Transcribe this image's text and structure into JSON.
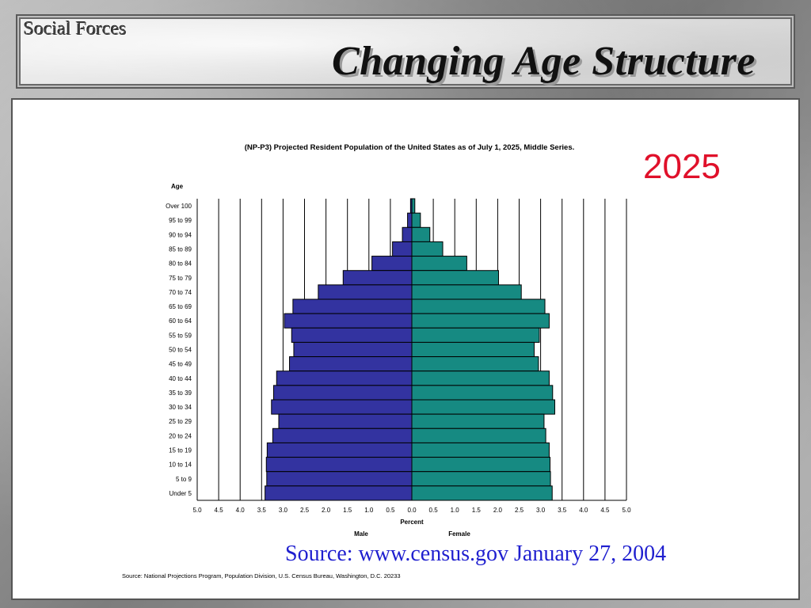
{
  "slide": {
    "section_label": "Social Forces",
    "title": "Changing Age Structure",
    "year_label": "2025",
    "source_link": "Source: www.census.gov  January 27, 2004",
    "source_note": "Source:  National Projections Program, Population Division, U.S. Census Bureau, Washington, D.C. 20233"
  },
  "colors": {
    "male": "#3333a0",
    "female": "#168a82",
    "year_label": "#e0102a",
    "source_link": "#1f1fcf"
  },
  "chart_data": {
    "type": "bar",
    "orientation": "horizontal-population-pyramid",
    "title": "(NP-P3)  Projected Resident Population of the United States as of July 1, 2025, Middle Series.",
    "ylabel": "Age",
    "xlabel": "Percent",
    "male_label": "Male",
    "female_label": "Female",
    "categories": [
      "Over 100",
      "95 to 99",
      "90 to 94",
      "85 to 89",
      "80 to 84",
      "75 to 79",
      "70 to 74",
      "65 to 69",
      "60 to 64",
      "55 to 59",
      "50 to 54",
      "45 to 49",
      "40 to 44",
      "35 to 39",
      "30 to 34",
      "25 to 29",
      "20 to 24",
      "15 to 19",
      "10 to 14",
      "5 to 9",
      "Under 5"
    ],
    "series": [
      {
        "name": "Male",
        "values": [
          0.03,
          0.1,
          0.22,
          0.45,
          0.93,
          1.6,
          2.18,
          2.77,
          2.97,
          2.8,
          2.75,
          2.85,
          3.15,
          3.22,
          3.27,
          3.1,
          3.24,
          3.37,
          3.39,
          3.38,
          3.42
        ]
      },
      {
        "name": "Female",
        "values": [
          0.07,
          0.2,
          0.42,
          0.72,
          1.28,
          2.02,
          2.55,
          3.1,
          3.2,
          2.97,
          2.85,
          2.95,
          3.2,
          3.28,
          3.33,
          3.08,
          3.12,
          3.2,
          3.22,
          3.23,
          3.27
        ]
      }
    ],
    "xlim": [
      0,
      5
    ],
    "xticks": [
      "5.0",
      "4.5",
      "4.0",
      "3.5",
      "3.0",
      "2.5",
      "2.0",
      "1.5",
      "1.0",
      "0.5",
      "0.0",
      "0.5",
      "1.0",
      "1.5",
      "2.0",
      "2.5",
      "3.0",
      "3.5",
      "4.0",
      "4.5",
      "5.0"
    ],
    "grid": true
  }
}
